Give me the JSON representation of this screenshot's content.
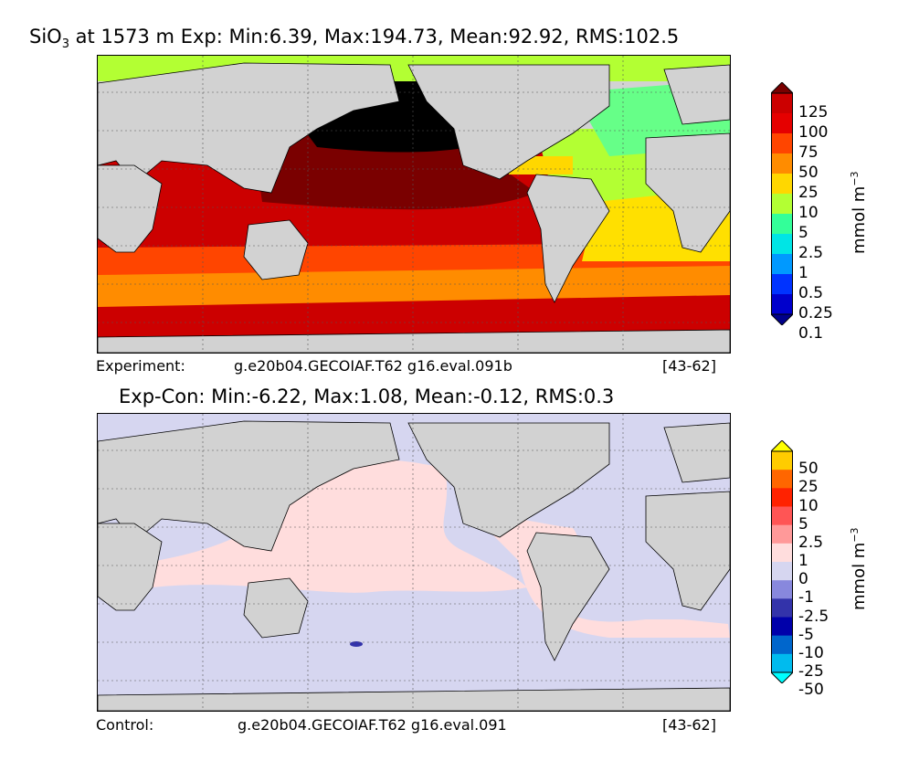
{
  "top_panel": {
    "title_var": "SiO",
    "title_sub": "3",
    "title_rest": " at 1573 m Exp: Min:6.39, Max:194.73, Mean:92.92, RMS:102.5",
    "footer_left": "Experiment:",
    "footer_center": "g.e20b04.GECOIAF.T62 g16.eval.091b",
    "footer_right": "[43-62]",
    "units": "mmol m",
    "units_exp": "−3",
    "colorbar_labels": [
      "125",
      "100",
      "75",
      "50",
      "25",
      "10",
      "5",
      "2.5",
      "1",
      "0.5",
      "0.25",
      "0.1"
    ],
    "colorbar_colors": [
      "#7a0000",
      "#cc0000",
      "#e50000",
      "#ff4500",
      "#ff8c00",
      "#ffd700",
      "#b3ff33",
      "#33ff99",
      "#00e5e5",
      "#0099ff",
      "#0033ff",
      "#0000cc",
      "#00008b"
    ],
    "region_colors": {
      "arctic": "#b3ff33",
      "n_atlantic_subpolar": "#66ff88",
      "n_atlantic": "#b3ff33",
      "caribbean": "#ffd700",
      "s_atlantic": "#ffe000",
      "n_pacific": "#000000",
      "trop_pacific": "#7a0000",
      "indian_pacific_band": "#cc0000",
      "s_band": "#ff4500",
      "acc": "#ff8c00",
      "southern": "#cc0000"
    }
  },
  "bottom_panel": {
    "title": "Exp-Con: Min:-6.22, Max:1.08, Mean:-0.12, RMS:0.3",
    "footer_left": "Control:",
    "footer_center": "g.e20b04.GECOIAF.T62 g16.eval.091",
    "footer_right": "[43-62]",
    "units": "mmol m",
    "units_exp": "−3",
    "colorbar_labels": [
      "50",
      "25",
      "10",
      "5",
      "2.5",
      "1",
      "0",
      "-1",
      "-2.5",
      "-5",
      "-10",
      "-25",
      "-50"
    ],
    "colorbar_colors": [
      "#ffff00",
      "#ffcc00",
      "#ff6600",
      "#ff2200",
      "#ff5555",
      "#ff9999",
      "#ffdddd",
      "#d6d6f0",
      "#8888dd",
      "#3333aa",
      "#0000aa",
      "#0066cc",
      "#00bbee",
      "#00ffff"
    ],
    "region_colors": {
      "negative": "#d6d6f0",
      "positive": "#ffdddd",
      "strong_negative": "#3333aa"
    }
  },
  "land_color": "#d2d2d2",
  "ice_color": "#ffffff"
}
